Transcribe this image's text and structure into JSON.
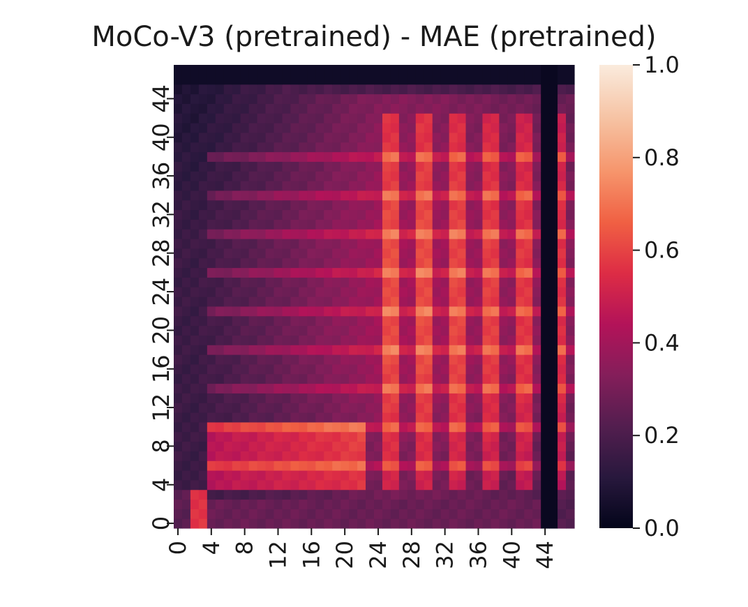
{
  "chart_data": {
    "type": "heatmap",
    "title": "MoCo-V3 (pretrained) - MAE (pretrained)",
    "xlabel": "",
    "ylabel": "",
    "x_tick_labels": [
      "0",
      "4",
      "8",
      "12",
      "16",
      "20",
      "24",
      "28",
      "32",
      "36",
      "40",
      "44"
    ],
    "y_tick_labels": [
      "0",
      "4",
      "8",
      "12",
      "16",
      "20",
      "24",
      "28",
      "32",
      "36",
      "40",
      "44"
    ],
    "n_rows": 48,
    "n_cols": 48,
    "tick_step": 4,
    "y_origin": "bottom",
    "colormap": "rocket",
    "colormap_stops": [
      "#03051a",
      "#28183d",
      "#531e4f",
      "#841e5a",
      "#b31359",
      "#dd2c45",
      "#f06043",
      "#f6956c",
      "#f6c1a1",
      "#faebdd"
    ],
    "colorbar": {
      "vmin": 0.0,
      "vmax": 1.0,
      "tick_labels": [
        "0.0",
        "0.2",
        "0.4",
        "0.6",
        "0.8",
        "1.0"
      ],
      "tick_values": [
        0.0,
        0.2,
        0.4,
        0.6,
        0.8,
        1.0
      ]
    },
    "grid": false,
    "legend": "colorbar-right",
    "pattern_summary": {
      "low_col_index": 44,
      "low_row_index": 46,
      "bright_col_indices": [
        25,
        29,
        33,
        37,
        41,
        45
      ],
      "bright_row_indices": [
        6,
        10,
        14,
        18,
        22,
        26,
        30,
        34,
        38
      ],
      "top_left_block_range": [
        4,
        10
      ],
      "peak_approx": 0.8
    }
  }
}
